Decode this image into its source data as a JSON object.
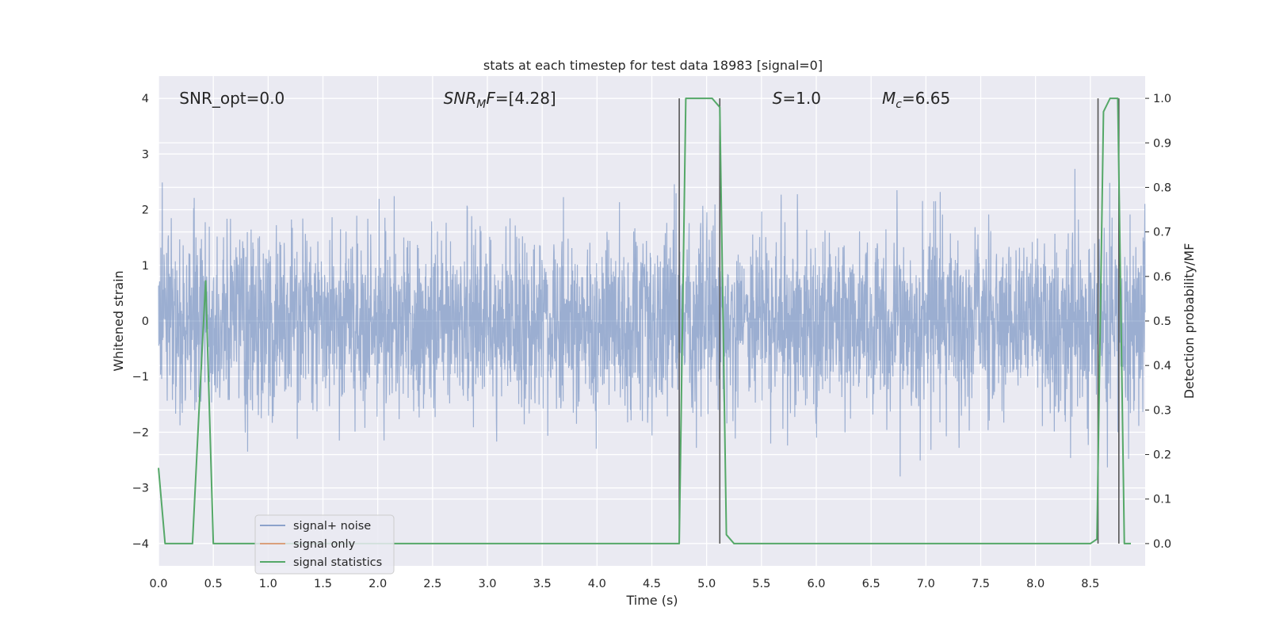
{
  "chart_data": {
    "type": "line",
    "title": "stats at each timestep for test data 18983 [signal=0]",
    "xlabel": "Time (s)",
    "ylabel_left": "Whitened strain",
    "ylabel_right": "Detection probability/MF",
    "xlim": [
      0,
      9.0
    ],
    "ylim_left": [
      -4.4,
      4.4
    ],
    "ylim_right": [
      -0.05,
      1.05
    ],
    "x_ticks": [
      0.0,
      0.5,
      1.0,
      1.5,
      2.0,
      2.5,
      3.0,
      3.5,
      4.0,
      4.5,
      5.0,
      5.5,
      6.0,
      6.5,
      7.0,
      7.5,
      8.0,
      8.5
    ],
    "x_tick_labels": [
      "0.0",
      "0.5",
      "1.0",
      "1.5",
      "2.0",
      "2.5",
      "3.0",
      "3.5",
      "4.0",
      "4.5",
      "5.0",
      "5.5",
      "6.0",
      "6.5",
      "7.0",
      "7.5",
      "8.0",
      "8.5"
    ],
    "y_left_ticks": [
      -4,
      -3,
      -2,
      -1,
      0,
      1,
      2,
      3,
      4
    ],
    "y_left_tick_labels": [
      "−4",
      "−3",
      "−2",
      "−1",
      "0",
      "1",
      "2",
      "3",
      "4"
    ],
    "y_right_ticks": [
      0.0,
      0.1,
      0.2,
      0.3,
      0.4,
      0.5,
      0.6,
      0.7,
      0.8,
      0.9,
      1.0
    ],
    "y_right_tick_labels": [
      "0.0",
      "0.1",
      "0.2",
      "0.3",
      "0.4",
      "0.5",
      "0.6",
      "0.7",
      "0.8",
      "0.9",
      "1.0"
    ],
    "grid": true,
    "legend_position": "lower-left",
    "annotations": [
      {
        "parts": [
          {
            "t": "SNR_opt=0.0",
            "i": false
          }
        ],
        "x": 0.19,
        "y": 4.0
      },
      {
        "parts": [
          {
            "t": "SNR",
            "i": true
          },
          {
            "t": "M",
            "i": true,
            "sub": true
          },
          {
            "t": "F",
            "i": true
          },
          {
            "t": "=[4.28]",
            "i": false
          }
        ],
        "x": 2.6,
        "y": 4.0
      },
      {
        "parts": [
          {
            "t": "S",
            "i": true
          },
          {
            "t": "=1.0",
            "i": false
          }
        ],
        "x": 5.6,
        "y": 4.0
      },
      {
        "parts": [
          {
            "t": "M",
            "i": true
          },
          {
            "t": "c",
            "i": true,
            "sub": true
          },
          {
            "t": "=6.65",
            "i": false
          }
        ],
        "x": 6.6,
        "y": 4.0
      }
    ],
    "vertical_lines": [
      4.75,
      5.12,
      8.57,
      8.76
    ],
    "series": [
      {
        "name": "signal+ noise",
        "color": "#4c72b0",
        "axis": "left",
        "style": "noise",
        "sigma": 0.8,
        "n_points": 3400
      },
      {
        "name": "signal only",
        "color": "#dd8452",
        "axis": "left",
        "x": [],
        "y": []
      },
      {
        "name": "signal statistics",
        "color": "#55a868",
        "axis": "right",
        "x": [
          0.0,
          0.06,
          0.12,
          0.31,
          0.37,
          0.43,
          0.5,
          4.68,
          4.75,
          4.81,
          4.87,
          5.05,
          5.12,
          5.18,
          5.25,
          8.5,
          8.56,
          8.62,
          8.68,
          8.75,
          8.81,
          8.87
        ],
        "y": [
          0.17,
          0.0,
          0.0,
          0.0,
          0.3,
          0.59,
          0.0,
          0.0,
          0.0,
          1.0,
          1.0,
          1.0,
          0.98,
          0.02,
          0.0,
          0.0,
          0.01,
          0.97,
          1.0,
          1.0,
          0.0,
          0.0
        ]
      }
    ]
  }
}
